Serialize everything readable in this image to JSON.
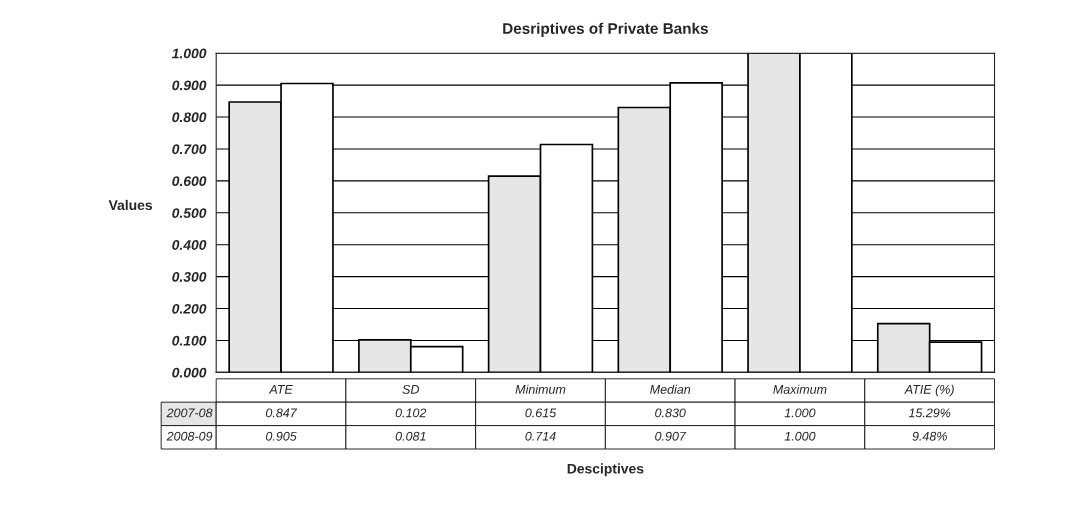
{
  "chart_data": {
    "type": "bar",
    "title": "Desriptives of Private Banks",
    "xlabel": "Desciptives",
    "ylabel": "Values",
    "categories": [
      "ATE",
      "SD",
      "Minimum",
      "Median",
      "Maximum",
      "ATIE (%)"
    ],
    "series": [
      {
        "name": "2007-08",
        "color": "#e6e6e6",
        "values": [
          0.847,
          0.102,
          0.615,
          0.83,
          1.0,
          0.1529
        ],
        "value_labels": [
          "0.847",
          "0.102",
          "0.615",
          "0.830",
          "1.000",
          "15.29%"
        ]
      },
      {
        "name": "2008-09",
        "color": "#ffffff",
        "values": [
          0.905,
          0.081,
          0.714,
          0.907,
          1.0,
          0.0948
        ],
        "value_labels": [
          "0.905",
          "0.081",
          "0.714",
          "0.907",
          "1.000",
          "9.48%"
        ]
      }
    ],
    "ylim": [
      0,
      1.0
    ],
    "yticks": [
      {
        "value": 0,
        "label": "0.000"
      },
      {
        "value": 0.1,
        "label": "0.100"
      },
      {
        "value": 0.2,
        "label": "0.200"
      },
      {
        "value": 0.3,
        "label": "0.300"
      },
      {
        "value": 0.4,
        "label": "0.400"
      },
      {
        "value": 0.5,
        "label": "0.500"
      },
      {
        "value": 0.6,
        "label": "0.600"
      },
      {
        "value": 0.7,
        "label": "0.700"
      },
      {
        "value": 0.8,
        "label": "0.800"
      },
      {
        "value": 0.9,
        "label": "0.900"
      },
      {
        "value": 1.0,
        "label": "1.000"
      }
    ],
    "grid": "y"
  }
}
